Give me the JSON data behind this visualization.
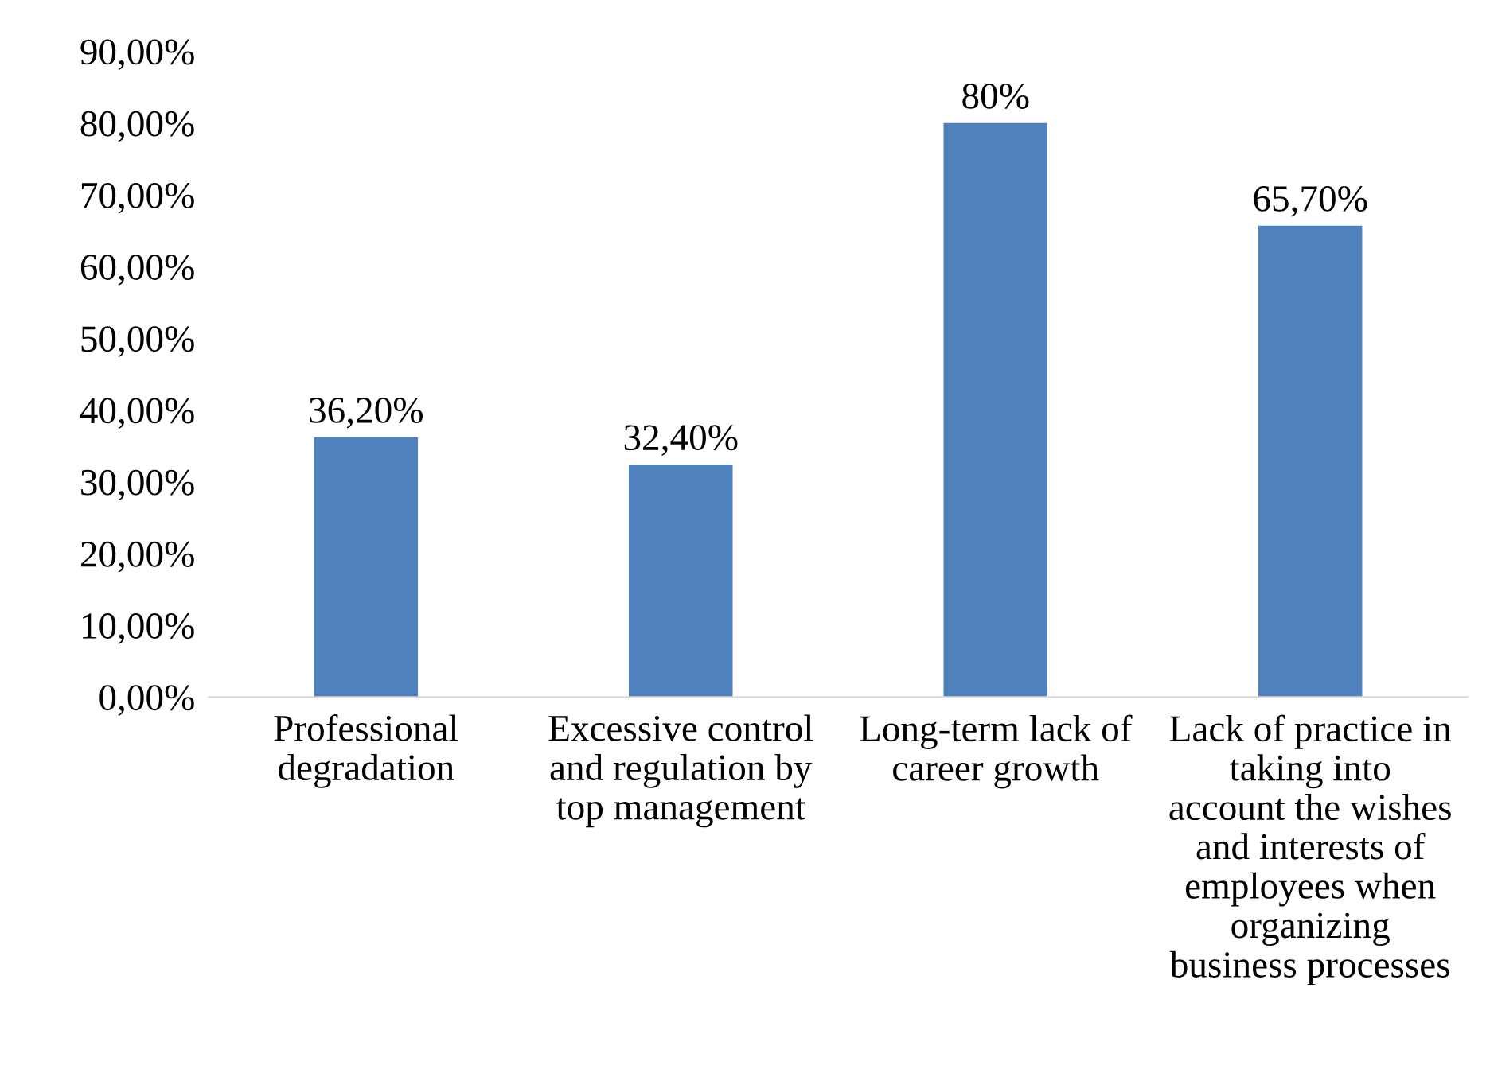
{
  "chart_data": {
    "type": "bar",
    "categories": [
      "Professional\ndegradation",
      "Excessive control\nand regulation by\ntop management",
      "Long-term lack of\ncareer growth",
      "Lack of practice in\ntaking into\naccount the wishes\nand interests of\nemployees when\norganizing\nbusiness processes"
    ],
    "values": [
      36.2,
      32.4,
      80,
      65.7
    ],
    "value_labels": [
      "36,20%",
      "32,40%",
      "80%",
      "65,70%"
    ],
    "color": "#4f81bd",
    "ylim": [
      0,
      90
    ],
    "yticks": [
      {
        "value": 0,
        "label": "0,00%"
      },
      {
        "value": 10,
        "label": "10,00%"
      },
      {
        "value": 20,
        "label": "20,00%"
      },
      {
        "value": 30,
        "label": "30,00%"
      },
      {
        "value": 40,
        "label": "40,00%"
      },
      {
        "value": 50,
        "label": "50,00%"
      },
      {
        "value": 60,
        "label": "60,00%"
      },
      {
        "value": 70,
        "label": "70,00%"
      },
      {
        "value": 80,
        "label": "80,00%"
      },
      {
        "value": 90,
        "label": "90,00%"
      }
    ],
    "grid": false
  }
}
